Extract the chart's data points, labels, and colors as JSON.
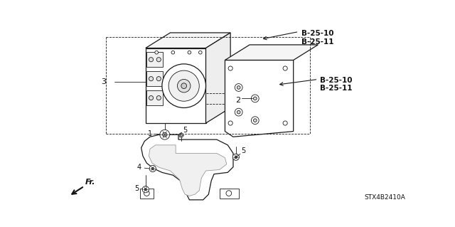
{
  "bg_color": "#ffffff",
  "diagram_code": "STX4B2410A",
  "line_color": "#1a1a1a",
  "text_color": "#111111",
  "figsize": [
    6.4,
    3.19
  ],
  "dpi": 100,
  "labels": {
    "top_ref": "B-25-10\nB-25-11",
    "right_ref": "B-25-10\nB-25-11",
    "fr_label": "Fr."
  },
  "annotation_fs": 7.0,
  "ref_fs": 7.5
}
